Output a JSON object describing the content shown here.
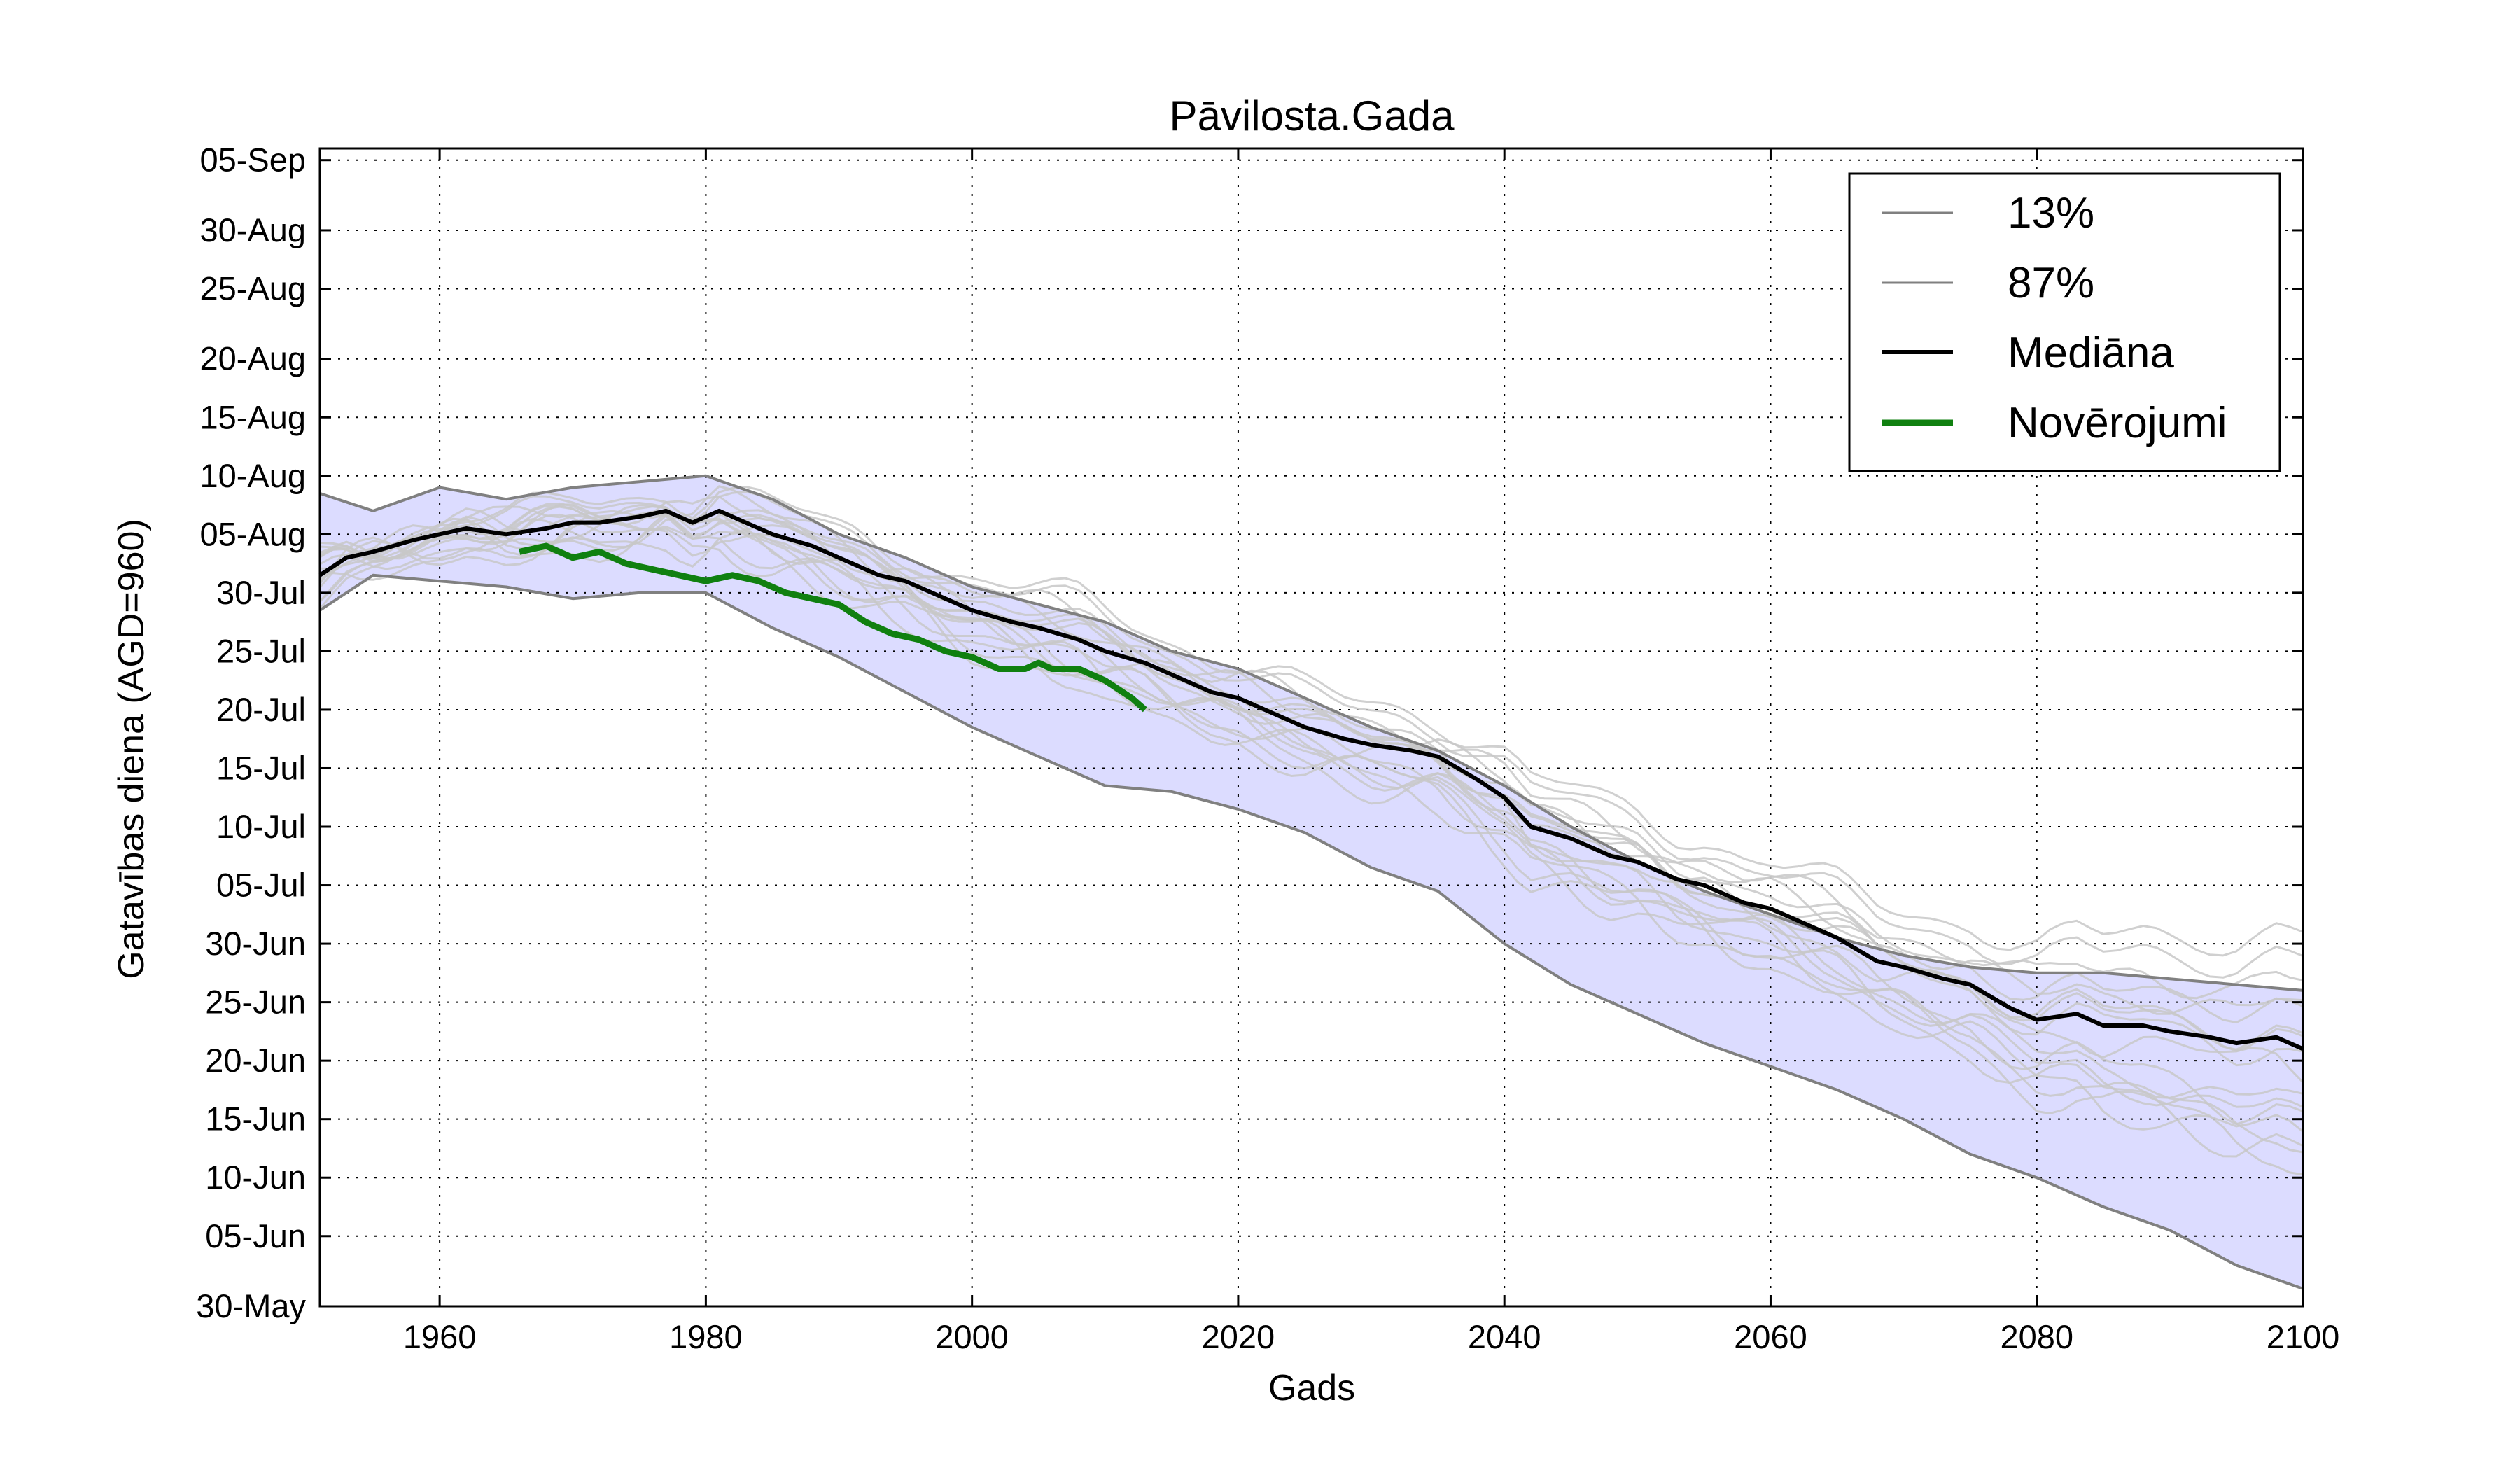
{
  "chart_data": {
    "type": "line",
    "title": "Pāvilosta.Gada",
    "xlabel": "Gads",
    "ylabel": "Gatavības diena (AGD=960)",
    "xlim": [
      1951,
      2100
    ],
    "ylim": [
      150,
      249
    ],
    "grid": true,
    "legend_position": "top-right",
    "x_ticks": [
      1960,
      1980,
      2000,
      2020,
      2040,
      2060,
      2080,
      2100
    ],
    "x_tick_labels": [
      "1960",
      "1980",
      "2000",
      "2020",
      "2040",
      "2060",
      "2080",
      "2100"
    ],
    "y_ticks": [
      150,
      156,
      161,
      166,
      171,
      176,
      181,
      186,
      191,
      196,
      201,
      206,
      211,
      216,
      221,
      226,
      231,
      237,
      242,
      248
    ],
    "y_tick_labels": [
      "30-May",
      "05-Jun",
      "10-Jun",
      "15-Jun",
      "20-Jun",
      "25-Jun",
      "30-Jun",
      "05-Jul",
      "10-Jul",
      "15-Jul",
      "20-Jul",
      "25-Jul",
      "30-Jul",
      "05-Aug",
      "10-Aug",
      "15-Aug",
      "20-Aug",
      "25-Aug",
      "30-Aug",
      "05-Sep"
    ],
    "band_color": "#dcdcff",
    "series": [
      {
        "name": "13%",
        "color": "#808080",
        "x": [
          1951,
          1955,
          1960,
          1965,
          1970,
          1975,
          1980,
          1985,
          1990,
          1995,
          2000,
          2005,
          2010,
          2015,
          2020,
          2025,
          2030,
          2035,
          2040,
          2045,
          2050,
          2055,
          2060,
          2065,
          2070,
          2075,
          2080,
          2085,
          2090,
          2095,
          2100
        ],
        "values": [
          209.5,
          212.5,
          212,
          211.5,
          210.5,
          211,
          211,
          208,
          205.5,
          202.5,
          199.5,
          197,
          194.5,
          194,
          192.5,
          190.5,
          187.5,
          185.5,
          181,
          177.5,
          175,
          172.5,
          170.5,
          168.5,
          166,
          163,
          161,
          158.5,
          156.5,
          153.5,
          151.5
        ]
      },
      {
        "name": "87%",
        "color": "#808080",
        "x": [
          1951,
          1955,
          1960,
          1965,
          1970,
          1975,
          1980,
          1985,
          1990,
          1995,
          2000,
          2005,
          2010,
          2015,
          2020,
          2025,
          2030,
          2035,
          2040,
          2045,
          2050,
          2055,
          2060,
          2065,
          2070,
          2075,
          2080,
          2085,
          2090,
          2095,
          2100
        ],
        "values": [
          219.5,
          218,
          220,
          219,
          220,
          220.5,
          221,
          219,
          216,
          214,
          211.5,
          210,
          208.5,
          206,
          204.5,
          202,
          199.5,
          197.5,
          194.5,
          191,
          188,
          185.5,
          183.5,
          181.5,
          180,
          179,
          178.5,
          178.5,
          178,
          177.5,
          177
        ]
      },
      {
        "name": "Mediāna",
        "color": "#000000",
        "x": [
          1951,
          1953,
          1955,
          1958,
          1960,
          1962,
          1965,
          1968,
          1970,
          1972,
          1975,
          1977,
          1979,
          1981,
          1983,
          1985,
          1988,
          1990,
          1993,
          1995,
          1998,
          2000,
          2003,
          2005,
          2008,
          2010,
          2013,
          2015,
          2018,
          2020,
          2023,
          2025,
          2028,
          2030,
          2033,
          2035,
          2038,
          2040,
          2042,
          2045,
          2048,
          2050,
          2053,
          2055,
          2058,
          2060,
          2063,
          2065,
          2068,
          2070,
          2073,
          2075,
          2078,
          2080,
          2083,
          2085,
          2088,
          2090,
          2093,
          2095,
          2098,
          2100
        ],
        "values": [
          212.5,
          214,
          214.5,
          215.5,
          216,
          216.5,
          216,
          216.5,
          217,
          217,
          217.5,
          218,
          217,
          218,
          217,
          216,
          215,
          214,
          212.5,
          212,
          210.5,
          209.5,
          208.5,
          208,
          207,
          206,
          205,
          204,
          202.5,
          202,
          200.5,
          199.5,
          198.5,
          198,
          197.5,
          197,
          195,
          193.5,
          191,
          190,
          188.5,
          188,
          186.5,
          186,
          184.5,
          184,
          182.5,
          181.5,
          179.5,
          179,
          178,
          177.5,
          175.5,
          174.5,
          175,
          174,
          174,
          173.5,
          173,
          172.5,
          173,
          172
        ]
      },
      {
        "name": "Novērojumi",
        "color": "#108010",
        "x": [
          1966,
          1968,
          1970,
          1972,
          1974,
          1976,
          1978,
          1980,
          1982,
          1984,
          1986,
          1988,
          1990,
          1992,
          1994,
          1996,
          1998,
          2000,
          2002,
          2004,
          2005,
          2006,
          2008,
          2010,
          2012,
          2013
        ],
        "values": [
          214.5,
          215,
          214,
          214.5,
          213.5,
          213,
          212.5,
          212,
          212.5,
          212,
          211,
          210.5,
          210,
          208.5,
          207.5,
          207,
          206,
          205.5,
          204.5,
          204.5,
          205,
          204.5,
          204.5,
          203.5,
          202,
          201
        ]
      }
    ],
    "scenario_count": 16
  },
  "legend": {
    "items": [
      {
        "label": "13%"
      },
      {
        "label": "87%"
      },
      {
        "label": "Mediāna"
      },
      {
        "label": "Novērojumi"
      }
    ]
  }
}
